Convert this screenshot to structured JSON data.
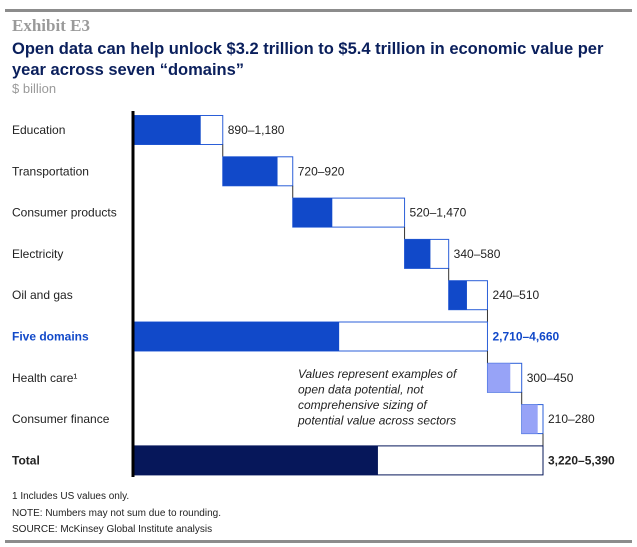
{
  "header": {
    "exhibit": "Exhibit E3",
    "title": "Open data can help unlock $3.2 trillion to $5.4 trillion in economic value per year across seven “domains”",
    "unit": "$ billion"
  },
  "chart_data": {
    "type": "bar",
    "subtype": "waterfall-range",
    "unit": "$ billion",
    "categories": [
      "Education",
      "Transportation",
      "Consumer products",
      "Electricity",
      "Oil and gas",
      "Five domains",
      "Health care¹",
      "Consumer finance",
      "Total"
    ],
    "low": [
      890,
      720,
      520,
      340,
      240,
      2710,
      300,
      210,
      3220
    ],
    "high": [
      1180,
      920,
      1470,
      580,
      510,
      4660,
      450,
      280,
      5390
    ],
    "labels": [
      "890–1,180",
      "720–920",
      "520–1,470",
      "340–580",
      "240–510",
      "2,710–4,660",
      "300–450",
      "210–280",
      "3,220–5,390"
    ],
    "kinds": [
      "step",
      "step",
      "step",
      "step",
      "step",
      "subtotal",
      "step2",
      "step2",
      "total"
    ],
    "colors": {
      "step": "#1149c9",
      "subtotal": "#1149c9",
      "step2": "#97a3f7",
      "total": "#06175a",
      "subtotal_label": "#1149c9",
      "outline": "#2b5fd8"
    },
    "annotation": "Values represent examples of open data potential, not comprehensive sizing of potential value across sectors"
  },
  "footnotes": [
    "1  Includes US values only.",
    "NOTE: Numbers may not sum due to rounding.",
    "SOURCE: McKinsey Global Institute analysis"
  ]
}
